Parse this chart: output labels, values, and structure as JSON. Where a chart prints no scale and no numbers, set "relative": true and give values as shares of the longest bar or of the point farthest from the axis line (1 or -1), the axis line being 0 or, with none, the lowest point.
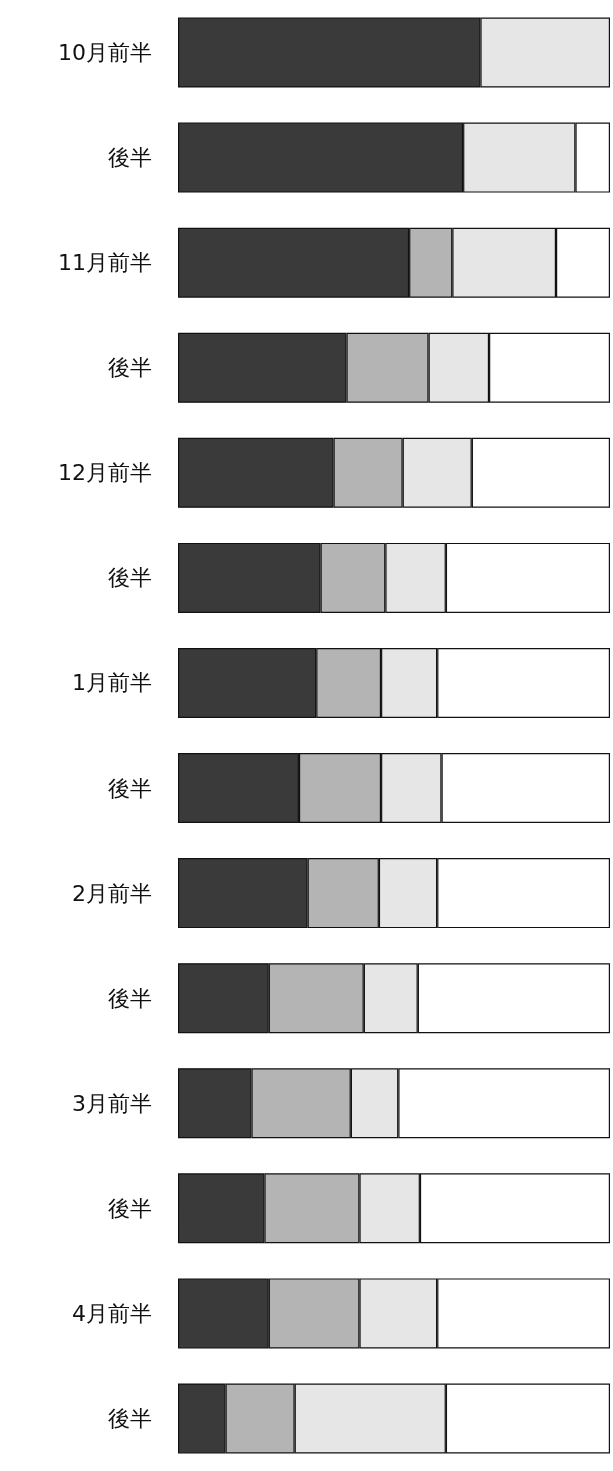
{
  "chart_data": {
    "type": "bar",
    "orientation": "horizontal",
    "stacked": true,
    "relative": true,
    "categories": [
      "10月前半",
      "後半",
      "11月前半",
      "後半",
      "12月前半",
      "後半",
      "1月前半",
      "後半",
      "2月前半",
      "後半",
      "3月前半",
      "後半",
      "4月前半",
      "後半"
    ],
    "series": [
      {
        "color": "#3a3a3a",
        "values": [
          0.7,
          0.66,
          0.535,
          0.39,
          0.36,
          0.33,
          0.32,
          0.28,
          0.3,
          0.21,
          0.17,
          0.2,
          0.21,
          0.11
        ]
      },
      {
        "color": "#b4b4b4",
        "values": [
          null,
          null,
          0.1,
          0.19,
          0.16,
          0.15,
          0.15,
          0.19,
          0.165,
          0.22,
          0.23,
          0.22,
          0.21,
          0.16
        ]
      },
      {
        "color": "#e6e6e6",
        "values": [
          0.3,
          0.26,
          0.24,
          0.14,
          0.16,
          0.14,
          0.13,
          0.14,
          0.135,
          0.125,
          0.11,
          0.14,
          0.18,
          0.35
        ]
      },
      {
        "color": "#ffffff",
        "values": [
          null,
          0.08,
          0.125,
          0.28,
          0.32,
          0.38,
          0.4,
          0.39,
          0.4,
          0.445,
          0.49,
          0.44,
          0.4,
          0.38
        ]
      }
    ]
  }
}
